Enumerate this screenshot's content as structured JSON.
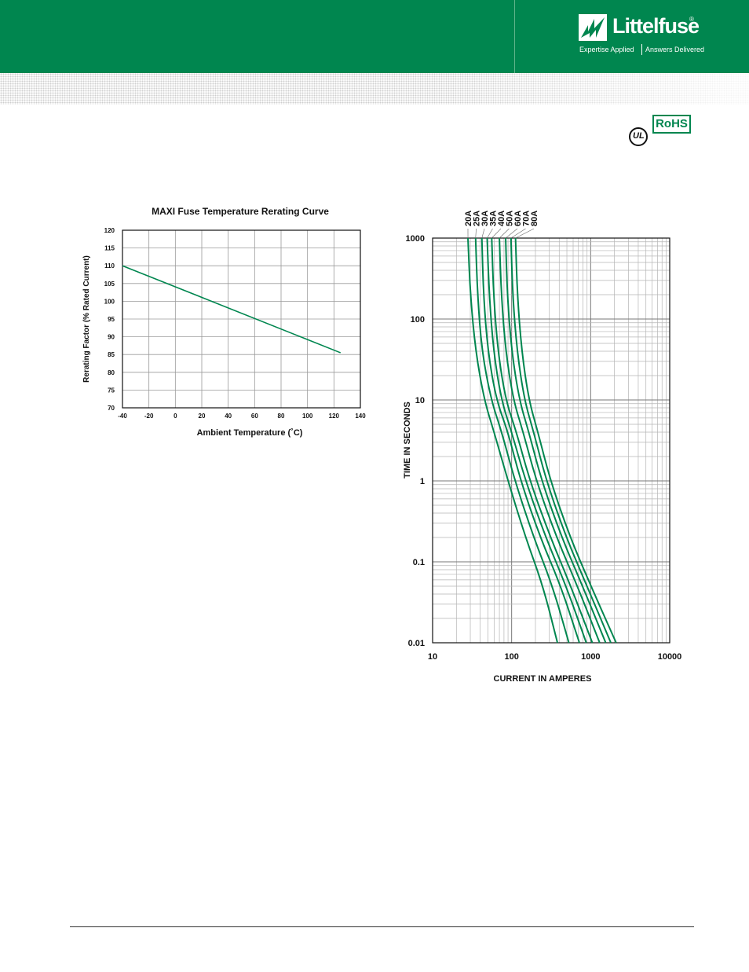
{
  "brand": {
    "name": "Littelfuse",
    "tagline_left": "Expertise Applied",
    "tagline_right": "Answers Delivered",
    "registered": "®",
    "color": "#00864f"
  },
  "certifications": {
    "ul": "UL",
    "rohs": "RoHS"
  },
  "chart_data": [
    {
      "type": "line",
      "title": "MAXI Fuse Temperature Rerating Curve",
      "xlabel": "Ambient Temperature (˚C)",
      "ylabel": "Rerating Factor (% Rated Current)",
      "xlim": [
        -40,
        140
      ],
      "ylim": [
        70,
        120
      ],
      "xticks": [
        "-40",
        "-20",
        "0",
        "20",
        "40",
        "60",
        "80",
        "100",
        "120",
        "140"
      ],
      "yticks": [
        "70",
        "75",
        "80",
        "85",
        "90",
        "95",
        "100",
        "105",
        "110",
        "115",
        "120"
      ],
      "grid": true,
      "series_color": "#00864f",
      "series": [
        {
          "x": [
            -40,
            125
          ],
          "y": [
            110,
            85.5
          ]
        }
      ]
    },
    {
      "type": "line",
      "xlabel": "CURRENT IN AMPERES",
      "ylabel": "TIME IN SECONDS",
      "xscale": "log",
      "yscale": "log",
      "xlim": [
        10,
        10000
      ],
      "ylim": [
        0.01,
        1000
      ],
      "xticks": [
        "10",
        "100",
        "1000",
        "10000"
      ],
      "yticks": [
        "0.01",
        "0.1",
        "1",
        "10",
        "100",
        "1000"
      ],
      "grid": true,
      "series_color": "#00864f",
      "series": [
        {
          "name": "20A",
          "x": [
            28,
            30,
            35,
            45,
            60,
            90,
            150,
            250,
            380
          ],
          "y": [
            1000,
            200,
            40,
            10,
            4,
            1,
            0.2,
            0.05,
            0.01
          ]
        },
        {
          "name": "25A",
          "x": [
            35,
            37,
            42,
            55,
            75,
            110,
            190,
            330,
            530
          ],
          "y": [
            1000,
            200,
            40,
            10,
            4,
            1,
            0.2,
            0.05,
            0.01
          ]
        },
        {
          "name": "30A",
          "x": [
            42,
            44,
            50,
            64,
            90,
            130,
            230,
            420,
            720
          ],
          "y": [
            1000,
            200,
            40,
            10,
            4,
            1,
            0.2,
            0.05,
            0.01
          ]
        },
        {
          "name": "35A",
          "x": [
            49,
            52,
            59,
            74,
            100,
            150,
            270,
            490,
            880
          ],
          "y": [
            1000,
            200,
            40,
            10,
            4,
            1,
            0.2,
            0.05,
            0.01
          ]
        },
        {
          "name": "40A",
          "x": [
            56,
            59,
            67,
            84,
            115,
            170,
            310,
            560,
            1050
          ],
          "y": [
            1000,
            200,
            40,
            10,
            4,
            1,
            0.2,
            0.05,
            0.01
          ]
        },
        {
          "name": "50A",
          "x": [
            70,
            74,
            84,
            105,
            140,
            205,
            370,
            680,
            1300
          ],
          "y": [
            1000,
            200,
            40,
            10,
            4,
            1,
            0.2,
            0.05,
            0.01
          ]
        },
        {
          "name": "60A",
          "x": [
            84,
            88,
            100,
            125,
            165,
            240,
            430,
            790,
            1550
          ],
          "y": [
            1000,
            200,
            40,
            10,
            4,
            1,
            0.2,
            0.05,
            0.01
          ]
        },
        {
          "name": "70A",
          "x": [
            98,
            103,
            117,
            145,
            190,
            275,
            490,
            900,
            1800
          ],
          "y": [
            1000,
            200,
            40,
            10,
            4,
            1,
            0.2,
            0.05,
            0.01
          ]
        },
        {
          "name": "80A",
          "x": [
            112,
            118,
            134,
            165,
            215,
            310,
            550,
            1010,
            2100
          ],
          "y": [
            1000,
            200,
            40,
            10,
            4,
            1,
            0.2,
            0.05,
            0.01
          ]
        }
      ]
    }
  ]
}
